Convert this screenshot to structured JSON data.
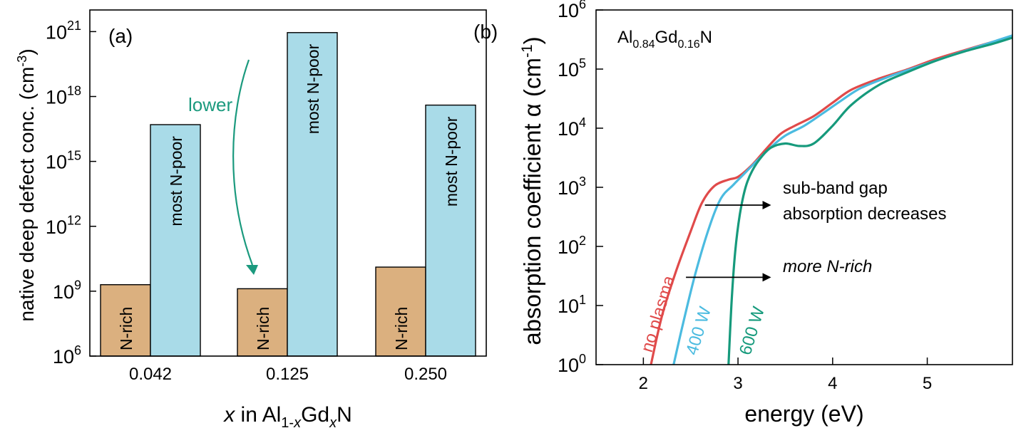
{
  "colors": {
    "n_rich": "#dbb07f",
    "n_poor": "#a9dbe8",
    "lower_arrow": "#1b9a7e",
    "no_plasma": "#e04a4a",
    "w400": "#4bbbe0",
    "w600": "#169a7c",
    "axis": "#000000"
  },
  "chart_data": [
    {
      "type": "bar",
      "panel_label": "(a)",
      "title": "",
      "xlabel": {
        "italic_x": "x",
        "in": " in Al",
        "sub1": "1-",
        "sub1_italic": "x",
        "gd": "Gd",
        "sub2": "x",
        "n": "N"
      },
      "ylabel": "native deep defect conc. (cm",
      "ylabel_sup": "-3",
      "ylabel_close": ")",
      "yscale": "log",
      "ylim": [
        1000000,
        10000000000000000000000
      ],
      "yticks": [
        {
          "value": 1000000,
          "base": "10",
          "exp": "6"
        },
        {
          "value": 1000000000,
          "base": "10",
          "exp": "9"
        },
        {
          "value": 1000000000000,
          "base": "10",
          "exp": "12"
        },
        {
          "value": 1000000000000000,
          "base": "10",
          "exp": "15"
        },
        {
          "value": 1000000000000000000,
          "base": "10",
          "exp": "18"
        },
        {
          "value": 1e+21,
          "base": "10",
          "exp": "21"
        }
      ],
      "categories": [
        "0.042",
        "0.125",
        "0.250"
      ],
      "series": [
        {
          "name": "N-rich",
          "label": "N-rich",
          "values": [
            2000000000.0,
            1300000000.0,
            13000000000.0
          ]
        },
        {
          "name": "most N-poor",
          "label": "most N-poor",
          "values": [
            5e+16,
            9e+20,
            4e+17
          ]
        }
      ],
      "annotations": [
        {
          "text": "lower",
          "type": "curved-arrow",
          "from_category": "0.125",
          "from_value": 3e+20,
          "to_value": 2000000000.0
        }
      ]
    },
    {
      "type": "line",
      "panel_label": "(b)",
      "inset_label": {
        "al": "Al",
        "al_sub": "0.84",
        "gd": "Gd",
        "gd_sub": "0.16",
        "n": "N"
      },
      "xlabel": "energy (eV)",
      "ylabel": "absorption coefficient α (cm",
      "ylabel_sup": "-1",
      "ylabel_close": ")",
      "xlim": [
        1.5,
        5.9
      ],
      "xticks": [
        {
          "value": 2,
          "label": "2"
        },
        {
          "value": 3,
          "label": "3"
        },
        {
          "value": 4,
          "label": "4"
        },
        {
          "value": 5,
          "label": "5"
        }
      ],
      "yscale": "log",
      "ylim": [
        1,
        1000000
      ],
      "yticks": [
        {
          "value": 1,
          "base": "10",
          "exp": "0"
        },
        {
          "value": 10,
          "base": "10",
          "exp": "1"
        },
        {
          "value": 100,
          "base": "10",
          "exp": "2"
        },
        {
          "value": 1000,
          "base": "10",
          "exp": "3"
        },
        {
          "value": 10000,
          "base": "10",
          "exp": "4"
        },
        {
          "value": 100000,
          "base": "10",
          "exp": "5"
        },
        {
          "value": 1000000,
          "base": "10",
          "exp": "6"
        }
      ],
      "series": [
        {
          "name": "no plasma",
          "label": "no plasma",
          "color_key": "no_plasma",
          "x": [
            2.08,
            2.2,
            2.35,
            2.5,
            2.62,
            2.75,
            2.9,
            3.0,
            3.15,
            3.3,
            3.45,
            3.6,
            3.8,
            4.0,
            4.2,
            4.5,
            4.8,
            5.1,
            5.4,
            5.7,
            5.9
          ],
          "y": [
            1,
            7,
            40,
            180,
            550,
            1050,
            1350,
            1500,
            2400,
            4500,
            8000,
            11000,
            16000,
            27000,
            45000,
            70000,
            100000,
            150000,
            210000,
            290000,
            350000
          ]
        },
        {
          "name": "400 W",
          "label": "400 W",
          "color_key": "w400",
          "x": [
            2.32,
            2.42,
            2.55,
            2.7,
            2.82,
            2.95,
            3.05,
            3.2,
            3.35,
            3.5,
            3.7,
            3.9,
            4.1,
            4.3,
            4.6,
            4.9,
            5.2,
            5.5,
            5.9
          ],
          "y": [
            1,
            5,
            35,
            220,
            650,
            1100,
            1600,
            2800,
            4800,
            7500,
            11000,
            18000,
            30000,
            48000,
            75000,
            110000,
            160000,
            230000,
            370000
          ]
        },
        {
          "name": "600 W",
          "label": "600 W",
          "color_key": "w600",
          "x": [
            2.9,
            2.93,
            2.97,
            3.02,
            3.08,
            3.15,
            3.25,
            3.35,
            3.5,
            3.65,
            3.8,
            4.0,
            4.2,
            4.5,
            4.8,
            5.1,
            5.4,
            5.7,
            5.9
          ],
          "y": [
            1,
            10,
            80,
            350,
            1000,
            1900,
            3300,
            4700,
            5500,
            5000,
            5500,
            11000,
            25000,
            55000,
            90000,
            140000,
            200000,
            270000,
            340000
          ]
        }
      ],
      "annotations": [
        {
          "text_line1": "sub-band gap",
          "text_line2": "absorption decreases",
          "arrow_from_x": 2.65,
          "arrow_to_x": 3.35,
          "arrow_y": 500
        },
        {
          "text": "more N-rich",
          "arrow_from_x": 2.45,
          "arrow_to_x": 3.35,
          "arrow_y": 30
        }
      ]
    }
  ]
}
